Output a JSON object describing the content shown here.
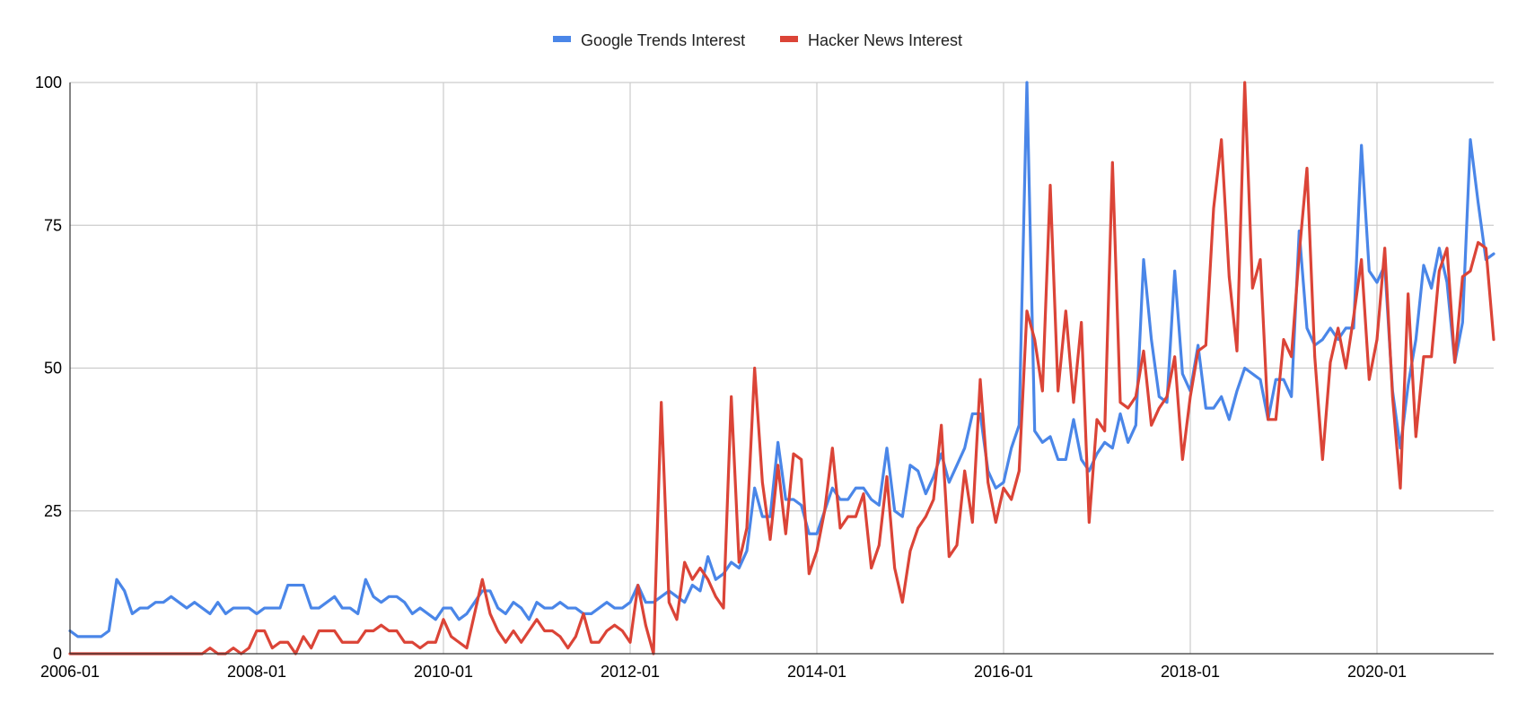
{
  "chart_data": {
    "type": "line",
    "title": "",
    "xlabel": "",
    "ylabel": "",
    "ylim": [
      0,
      100
    ],
    "xlim": [
      "2006-01",
      "2021-04"
    ],
    "y_ticks": [
      0,
      25,
      50,
      75,
      100
    ],
    "x_ticks": [
      "2006-01",
      "2008-01",
      "2010-01",
      "2012-01",
      "2014-01",
      "2016-01",
      "2018-01",
      "2020-01"
    ],
    "grid": true,
    "legend": "top-center",
    "start": "2006-01",
    "series": [
      {
        "name": "Google Trends Interest",
        "color": "#4a86e8",
        "values": [
          4,
          3,
          3,
          3,
          3,
          4,
          13,
          11,
          7,
          8,
          8,
          9,
          9,
          10,
          9,
          8,
          9,
          8,
          7,
          9,
          7,
          8,
          8,
          8,
          7,
          8,
          8,
          8,
          12,
          12,
          12,
          8,
          8,
          9,
          10,
          8,
          8,
          7,
          13,
          10,
          9,
          10,
          10,
          9,
          7,
          8,
          7,
          6,
          8,
          8,
          6,
          7,
          9,
          11,
          11,
          8,
          7,
          9,
          8,
          6,
          9,
          8,
          8,
          9,
          8,
          8,
          7,
          7,
          8,
          9,
          8,
          8,
          9,
          12,
          9,
          9,
          10,
          11,
          10,
          9,
          12,
          11,
          17,
          13,
          14,
          16,
          15,
          18,
          29,
          24,
          24,
          37,
          27,
          27,
          26,
          21,
          21,
          25,
          29,
          27,
          27,
          29,
          29,
          27,
          26,
          36,
          25,
          24,
          33,
          32,
          28,
          31,
          35,
          30,
          33,
          36,
          42,
          42,
          32,
          29,
          30,
          36,
          40,
          100,
          39,
          37,
          38,
          34,
          34,
          41,
          34,
          32,
          35,
          37,
          36,
          42,
          37,
          40,
          69,
          55,
          45,
          44,
          67,
          49,
          46,
          54,
          43,
          43,
          45,
          41,
          46,
          50,
          49,
          48,
          41,
          48,
          48,
          45,
          74,
          57,
          54,
          55,
          57,
          55,
          57,
          57,
          89,
          67,
          65,
          68,
          46,
          36,
          47,
          55,
          68,
          64,
          71,
          65,
          51,
          58,
          90,
          79,
          69,
          70
        ]
      },
      {
        "name": "Hacker News Interest",
        "color": "#db4437",
        "values": [
          0,
          0,
          0,
          0,
          0,
          0,
          0,
          0,
          0,
          0,
          0,
          0,
          0,
          0,
          0,
          0,
          0,
          0,
          1,
          0,
          0,
          1,
          0,
          1,
          4,
          4,
          1,
          2,
          2,
          0,
          3,
          1,
          4,
          4,
          4,
          2,
          2,
          2,
          4,
          4,
          5,
          4,
          4,
          2,
          2,
          1,
          2,
          2,
          6,
          3,
          2,
          1,
          7,
          13,
          7,
          4,
          2,
          4,
          2,
          4,
          6,
          4,
          4,
          3,
          1,
          3,
          7,
          2,
          2,
          4,
          5,
          4,
          2,
          12,
          5,
          0,
          44,
          9,
          6,
          16,
          13,
          15,
          13,
          10,
          8,
          45,
          16,
          22,
          50,
          30,
          20,
          33,
          21,
          35,
          34,
          14,
          18,
          25,
          36,
          22,
          24,
          24,
          28,
          15,
          19,
          31,
          15,
          9,
          18,
          22,
          24,
          27,
          40,
          17,
          19,
          32,
          23,
          48,
          30,
          23,
          29,
          27,
          32,
          60,
          55,
          46,
          82,
          46,
          60,
          44,
          58,
          23,
          41,
          39,
          86,
          44,
          43,
          45,
          53,
          40,
          43,
          45,
          52,
          34,
          45,
          53,
          54,
          78,
          90,
          66,
          53,
          100,
          64,
          69,
          41,
          41,
          55,
          52,
          70,
          85,
          52,
          34,
          51,
          57,
          50,
          59,
          69,
          48,
          55,
          71,
          45,
          29,
          63,
          38,
          52,
          52,
          67,
          71,
          51,
          66,
          67,
          72,
          71,
          55
        ]
      }
    ]
  },
  "legend": {
    "items": [
      "Google Trends Interest",
      "Hacker News Interest"
    ]
  }
}
